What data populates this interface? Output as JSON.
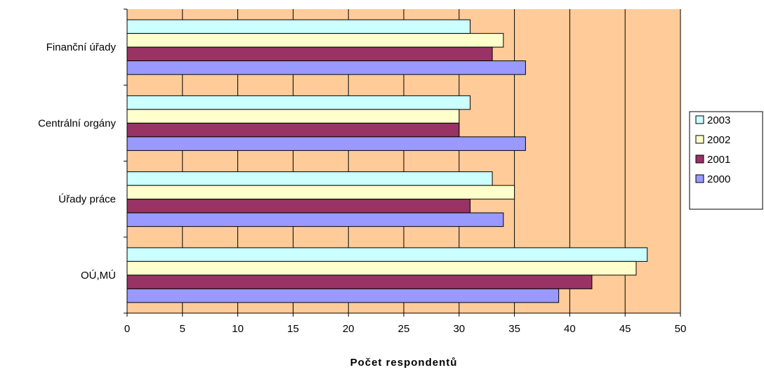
{
  "chart_data": {
    "type": "bar",
    "orientation": "horizontal",
    "categories": [
      "Finanční úřady",
      "Centrální orgány",
      "Úřady práce",
      "OÚ,MÚ"
    ],
    "series": [
      {
        "name": "2003",
        "color": "#ccffff",
        "values": [
          31,
          31,
          33,
          47
        ]
      },
      {
        "name": "2002",
        "color": "#ffffcc",
        "values": [
          34,
          30,
          35,
          46
        ]
      },
      {
        "name": "2001",
        "color": "#993366",
        "values": [
          33,
          30,
          31,
          42
        ]
      },
      {
        "name": "2000",
        "color": "#9999ff",
        "values": [
          36,
          36,
          34,
          39
        ]
      }
    ],
    "xlabel": "Počet respondentů",
    "ylabel": "",
    "xlim": [
      0,
      50
    ],
    "xticks": [
      "0",
      "5",
      "10",
      "15",
      "20",
      "25",
      "30",
      "35",
      "40",
      "45",
      "50"
    ],
    "grid": "vertical",
    "plot_background": "#ffcc99",
    "legend": {
      "placement": "right",
      "entries": [
        "2003",
        "2002",
        "2001",
        "2000"
      ]
    }
  }
}
